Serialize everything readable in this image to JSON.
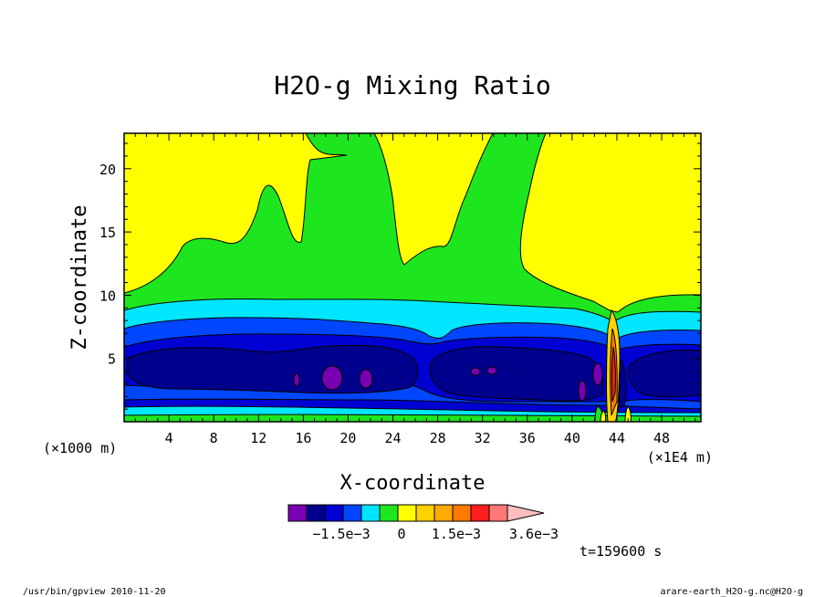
{
  "chart_data": {
    "type": "heatmap",
    "title": "H2O-g Mixing Ratio",
    "xlabel": "X-coordinate",
    "ylabel": "Z-coordinate",
    "x_unit_left": "(×1000 m)",
    "x_unit_right": "(×1E4 m)",
    "xlim": [
      0,
      51.5
    ],
    "ylim": [
      0,
      22.8
    ],
    "x_ticks": [
      "4",
      "8",
      "12",
      "16",
      "20",
      "24",
      "28",
      "32",
      "36",
      "40",
      "44",
      "48"
    ],
    "y_ticks": [
      "5",
      "10",
      "15",
      "20"
    ],
    "colorbar": {
      "colors": [
        "#7a00b4",
        "#00008c",
        "#0000d2",
        "#0046ff",
        "#00e6ff",
        "#1ee61e",
        "#ffff00",
        "#ffd200",
        "#ffaa00",
        "#ff7800",
        "#ff1e1e",
        "#ff7878",
        "#ffbebe"
      ],
      "labels": [
        "−1.5e−3",
        "0",
        "1.5e−3",
        "3.6e−3"
      ]
    },
    "time_label": "t=159600 s"
  },
  "footer": {
    "left": "/usr/bin/gpview  2010-11-20",
    "right": "arare-earth_H2O-g.nc@H2O-g"
  }
}
